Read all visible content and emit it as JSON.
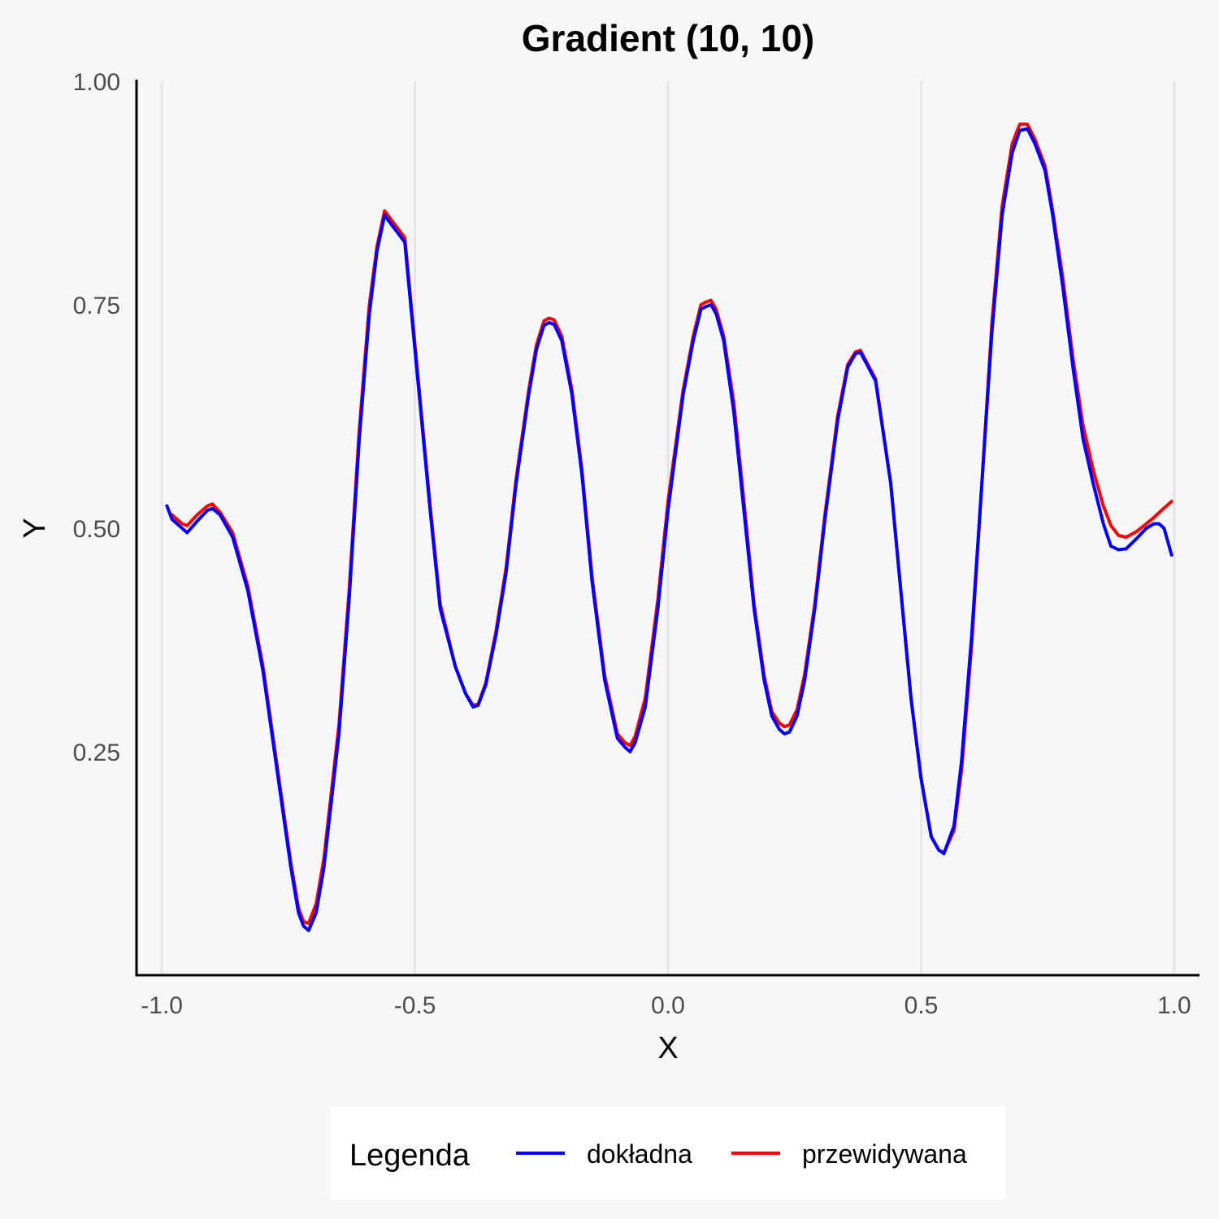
{
  "chart_data": {
    "type": "line",
    "title": "Gradient (10, 10)",
    "xlabel": "X",
    "ylabel": "Y",
    "xlim": [
      -1.05,
      1.05
    ],
    "ylim": [
      0.0,
      1.0
    ],
    "x_ticks": [
      -1.0,
      -0.5,
      0.0,
      0.5,
      1.0
    ],
    "x_tick_labels": [
      "-1.0",
      "-0.5",
      "0.0",
      "0.5",
      "1.0"
    ],
    "y_ticks": [
      0.25,
      0.5,
      0.75,
      1.0
    ],
    "y_tick_labels": [
      "0.25",
      "0.50",
      "0.75",
      "1.00"
    ],
    "grid": "vertical-major",
    "legend": {
      "title": "Legenda",
      "position": "bottom",
      "entries": [
        {
          "label": "dokładna",
          "color": "#0000ff"
        },
        {
          "label": "przewidywana",
          "color": "#ff0000"
        }
      ]
    },
    "series": [
      {
        "name": "dokładna",
        "color": "#0000ff",
        "points": [
          [
            -0.99,
            0.525
          ],
          [
            -0.98,
            0.51
          ],
          [
            -0.96,
            0.5
          ],
          [
            -0.95,
            0.495
          ],
          [
            -0.93,
            0.508
          ],
          [
            -0.91,
            0.52
          ],
          [
            -0.9,
            0.522
          ],
          [
            -0.885,
            0.515
          ],
          [
            -0.86,
            0.49
          ],
          [
            -0.83,
            0.43
          ],
          [
            -0.8,
            0.34
          ],
          [
            -0.77,
            0.22
          ],
          [
            -0.745,
            0.12
          ],
          [
            -0.73,
            0.07
          ],
          [
            -0.72,
            0.055
          ],
          [
            -0.71,
            0.05
          ],
          [
            -0.695,
            0.07
          ],
          [
            -0.68,
            0.12
          ],
          [
            -0.65,
            0.27
          ],
          [
            -0.63,
            0.42
          ],
          [
            -0.61,
            0.6
          ],
          [
            -0.59,
            0.74
          ],
          [
            -0.575,
            0.81
          ],
          [
            -0.56,
            0.85
          ],
          [
            -0.52,
            0.82
          ],
          [
            -0.5,
            0.7
          ],
          [
            -0.47,
            0.52
          ],
          [
            -0.45,
            0.41
          ],
          [
            -0.42,
            0.345
          ],
          [
            -0.4,
            0.315
          ],
          [
            -0.385,
            0.3
          ],
          [
            -0.375,
            0.302
          ],
          [
            -0.36,
            0.325
          ],
          [
            -0.34,
            0.38
          ],
          [
            -0.32,
            0.45
          ],
          [
            -0.3,
            0.55
          ],
          [
            -0.275,
            0.65
          ],
          [
            -0.26,
            0.7
          ],
          [
            -0.245,
            0.727
          ],
          [
            -0.235,
            0.73
          ],
          [
            -0.225,
            0.728
          ],
          [
            -0.21,
            0.71
          ],
          [
            -0.19,
            0.65
          ],
          [
            -0.17,
            0.56
          ],
          [
            -0.15,
            0.44
          ],
          [
            -0.125,
            0.33
          ],
          [
            -0.1,
            0.265
          ],
          [
            -0.085,
            0.255
          ],
          [
            -0.075,
            0.25
          ],
          [
            -0.065,
            0.26
          ],
          [
            -0.045,
            0.3
          ],
          [
            -0.02,
            0.41
          ],
          [
            0.0,
            0.52
          ],
          [
            0.03,
            0.65
          ],
          [
            0.05,
            0.71
          ],
          [
            0.065,
            0.745
          ],
          [
            0.075,
            0.748
          ],
          [
            0.085,
            0.75
          ],
          [
            0.095,
            0.74
          ],
          [
            0.11,
            0.71
          ],
          [
            0.13,
            0.63
          ],
          [
            0.15,
            0.52
          ],
          [
            0.17,
            0.41
          ],
          [
            0.19,
            0.33
          ],
          [
            0.205,
            0.29
          ],
          [
            0.22,
            0.275
          ],
          [
            0.23,
            0.27
          ],
          [
            0.24,
            0.272
          ],
          [
            0.255,
            0.29
          ],
          [
            0.27,
            0.33
          ],
          [
            0.29,
            0.41
          ],
          [
            0.31,
            0.51
          ],
          [
            0.335,
            0.62
          ],
          [
            0.355,
            0.68
          ],
          [
            0.37,
            0.695
          ],
          [
            0.38,
            0.697
          ],
          [
            0.41,
            0.665
          ],
          [
            0.44,
            0.55
          ],
          [
            0.46,
            0.43
          ],
          [
            0.48,
            0.31
          ],
          [
            0.5,
            0.22
          ],
          [
            0.52,
            0.155
          ],
          [
            0.535,
            0.14
          ],
          [
            0.545,
            0.136
          ],
          [
            0.565,
            0.167
          ],
          [
            0.58,
            0.24
          ],
          [
            0.6,
            0.38
          ],
          [
            0.62,
            0.55
          ],
          [
            0.64,
            0.72
          ],
          [
            0.66,
            0.85
          ],
          [
            0.68,
            0.92
          ],
          [
            0.695,
            0.945
          ],
          [
            0.71,
            0.947
          ],
          [
            0.725,
            0.93
          ],
          [
            0.745,
            0.9
          ],
          [
            0.76,
            0.85
          ],
          [
            0.78,
            0.77
          ],
          [
            0.8,
            0.68
          ],
          [
            0.82,
            0.6
          ],
          [
            0.84,
            0.55
          ],
          [
            0.86,
            0.505
          ],
          [
            0.875,
            0.48
          ],
          [
            0.89,
            0.476
          ],
          [
            0.905,
            0.477
          ],
          [
            0.925,
            0.488
          ],
          [
            0.945,
            0.5
          ],
          [
            0.96,
            0.505
          ],
          [
            0.97,
            0.505
          ],
          [
            0.98,
            0.5
          ],
          [
            0.995,
            0.47
          ]
        ]
      },
      {
        "name": "przewidywana",
        "color": "#ff0000",
        "points": [
          [
            -0.98,
            0.515
          ],
          [
            -0.96,
            0.505
          ],
          [
            -0.95,
            0.503
          ],
          [
            -0.93,
            0.515
          ],
          [
            -0.91,
            0.525
          ],
          [
            -0.9,
            0.527
          ],
          [
            -0.885,
            0.518
          ],
          [
            -0.86,
            0.495
          ],
          [
            -0.83,
            0.435
          ],
          [
            -0.8,
            0.345
          ],
          [
            -0.77,
            0.225
          ],
          [
            -0.745,
            0.125
          ],
          [
            -0.73,
            0.075
          ],
          [
            -0.72,
            0.06
          ],
          [
            -0.71,
            0.058
          ],
          [
            -0.695,
            0.08
          ],
          [
            -0.68,
            0.13
          ],
          [
            -0.65,
            0.28
          ],
          [
            -0.63,
            0.43
          ],
          [
            -0.61,
            0.61
          ],
          [
            -0.59,
            0.75
          ],
          [
            -0.575,
            0.815
          ],
          [
            -0.56,
            0.855
          ],
          [
            -0.52,
            0.825
          ],
          [
            -0.5,
            0.705
          ],
          [
            -0.47,
            0.525
          ],
          [
            -0.45,
            0.415
          ],
          [
            -0.42,
            0.345
          ],
          [
            -0.4,
            0.315
          ],
          [
            -0.385,
            0.302
          ],
          [
            -0.375,
            0.303
          ],
          [
            -0.36,
            0.327
          ],
          [
            -0.34,
            0.384
          ],
          [
            -0.32,
            0.455
          ],
          [
            -0.3,
            0.555
          ],
          [
            -0.275,
            0.655
          ],
          [
            -0.26,
            0.705
          ],
          [
            -0.245,
            0.732
          ],
          [
            -0.235,
            0.735
          ],
          [
            -0.225,
            0.733
          ],
          [
            -0.21,
            0.715
          ],
          [
            -0.19,
            0.655
          ],
          [
            -0.17,
            0.565
          ],
          [
            -0.15,
            0.445
          ],
          [
            -0.125,
            0.335
          ],
          [
            -0.1,
            0.27
          ],
          [
            -0.085,
            0.26
          ],
          [
            -0.075,
            0.257
          ],
          [
            -0.065,
            0.267
          ],
          [
            -0.045,
            0.31
          ],
          [
            -0.02,
            0.42
          ],
          [
            0.0,
            0.53
          ],
          [
            0.03,
            0.655
          ],
          [
            0.05,
            0.715
          ],
          [
            0.065,
            0.75
          ],
          [
            0.075,
            0.753
          ],
          [
            0.085,
            0.755
          ],
          [
            0.095,
            0.745
          ],
          [
            0.11,
            0.715
          ],
          [
            0.13,
            0.64
          ],
          [
            0.15,
            0.53
          ],
          [
            0.17,
            0.415
          ],
          [
            0.19,
            0.335
          ],
          [
            0.205,
            0.295
          ],
          [
            0.22,
            0.282
          ],
          [
            0.23,
            0.278
          ],
          [
            0.24,
            0.28
          ],
          [
            0.255,
            0.297
          ],
          [
            0.27,
            0.337
          ],
          [
            0.29,
            0.415
          ],
          [
            0.31,
            0.515
          ],
          [
            0.335,
            0.625
          ],
          [
            0.355,
            0.683
          ],
          [
            0.37,
            0.697
          ],
          [
            0.38,
            0.699
          ],
          [
            0.41,
            0.667
          ],
          [
            0.44,
            0.55
          ],
          [
            0.46,
            0.43
          ],
          [
            0.48,
            0.31
          ],
          [
            0.5,
            0.22
          ],
          [
            0.52,
            0.155
          ],
          [
            0.535,
            0.14
          ],
          [
            0.545,
            0.137
          ],
          [
            0.565,
            0.162
          ],
          [
            0.58,
            0.23
          ],
          [
            0.6,
            0.37
          ],
          [
            0.62,
            0.55
          ],
          [
            0.64,
            0.73
          ],
          [
            0.66,
            0.86
          ],
          [
            0.68,
            0.93
          ],
          [
            0.695,
            0.952
          ],
          [
            0.71,
            0.952
          ],
          [
            0.725,
            0.935
          ],
          [
            0.745,
            0.905
          ],
          [
            0.76,
            0.855
          ],
          [
            0.78,
            0.78
          ],
          [
            0.8,
            0.69
          ],
          [
            0.82,
            0.615
          ],
          [
            0.84,
            0.565
          ],
          [
            0.86,
            0.525
          ],
          [
            0.875,
            0.503
          ],
          [
            0.89,
            0.492
          ],
          [
            0.905,
            0.49
          ],
          [
            0.925,
            0.496
          ],
          [
            0.945,
            0.505
          ],
          [
            0.96,
            0.512
          ],
          [
            0.975,
            0.52
          ],
          [
            0.995,
            0.53
          ]
        ]
      }
    ]
  }
}
